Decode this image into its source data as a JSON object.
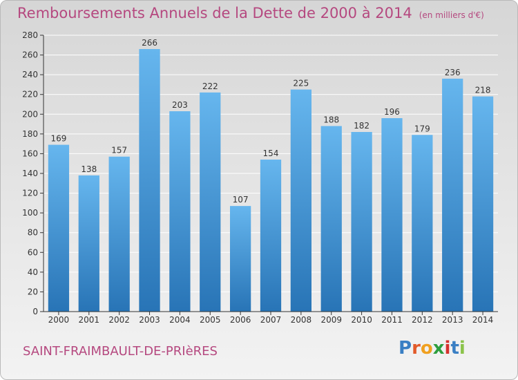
{
  "header": {
    "title": "Remboursements Annuels de la Dette de 2000 à 2014",
    "unit": "(en milliers d'€)"
  },
  "footer": {
    "commune": "SAINT-FRAIMBAULT-DE-PRIèRES",
    "logo": "Proxiti"
  },
  "chart_data": {
    "type": "bar",
    "title": "Remboursements Annuels de la Dette de 2000 à 2014",
    "subtitle": "(en milliers d'€)",
    "xlabel": "",
    "ylabel": "",
    "categories": [
      "2000",
      "2001",
      "2002",
      "2003",
      "2004",
      "2005",
      "2006",
      "2007",
      "2008",
      "2009",
      "2010",
      "2011",
      "2012",
      "2013",
      "2014"
    ],
    "values": [
      169,
      138,
      157,
      266,
      203,
      222,
      107,
      154,
      225,
      188,
      182,
      196,
      179,
      236,
      218
    ],
    "ylim": [
      0,
      280
    ],
    "yticks": [
      0,
      20,
      40,
      60,
      80,
      100,
      120,
      140,
      160,
      180,
      200,
      220,
      240,
      260,
      280
    ],
    "grid": true,
    "bar_color": "#4a9ee0",
    "legend": "none"
  },
  "colors": {
    "title": "#b5487f",
    "bar_top": "#66b6ee",
    "bar_bottom": "#2874b6",
    "grid": "#ffffff",
    "axis": "#333333"
  }
}
